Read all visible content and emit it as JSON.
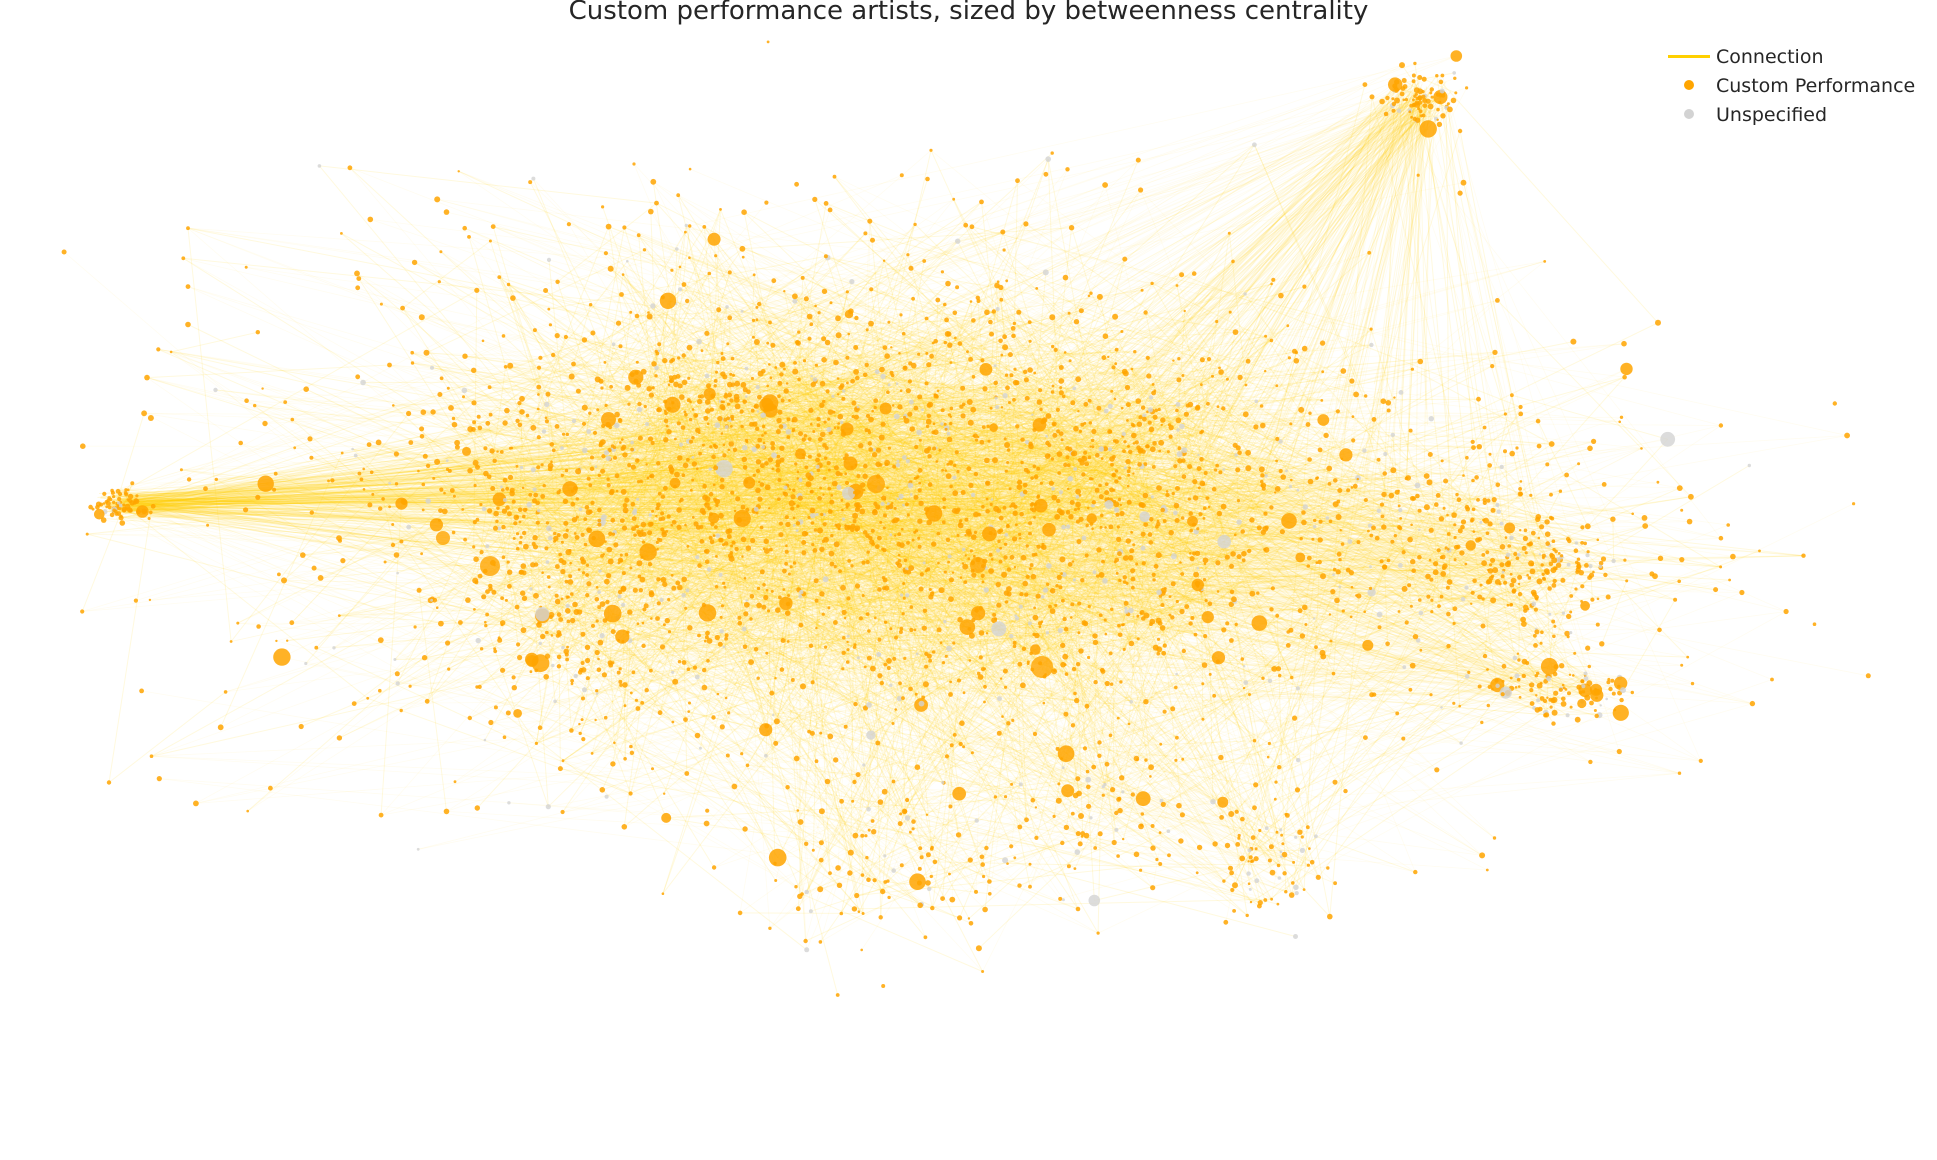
{
  "title": "Custom performance artists, sized by betweenness centrality",
  "colors": {
    "edge": "#FFD000",
    "custom_performance": "#FFA500",
    "unspecified": "#D3D3D3",
    "background": "#FFFFFF"
  },
  "legend": {
    "placement": "top-right",
    "items": [
      {
        "label": "Connection",
        "marker": "line",
        "color": "#FFD000"
      },
      {
        "label": "Custom Performance",
        "marker": "dot",
        "color": "#FFA500"
      },
      {
        "label": "Unspecified",
        "marker": "dot",
        "color": "#D3D3D3"
      }
    ]
  }
}
